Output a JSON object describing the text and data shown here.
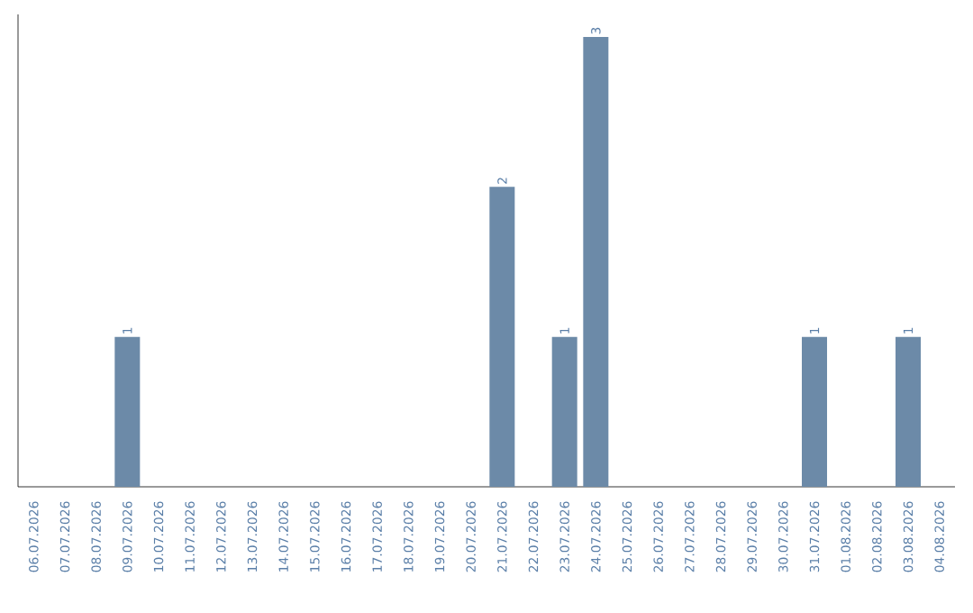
{
  "chart_data": {
    "type": "bar",
    "categories": [
      "06.07.2026",
      "07.07.2026",
      "08.07.2026",
      "09.07.2026",
      "10.07.2026",
      "11.07.2026",
      "12.07.2026",
      "13.07.2026",
      "14.07.2026",
      "15.07.2026",
      "16.07.2026",
      "17.07.2026",
      "18.07.2026",
      "19.07.2026",
      "20.07.2026",
      "21.07.2026",
      "22.07.2026",
      "23.07.2026",
      "24.07.2026",
      "25.07.2026",
      "26.07.2026",
      "27.07.2026",
      "28.07.2026",
      "29.07.2026",
      "30.07.2026",
      "31.07.2026",
      "01.08.2026",
      "02.08.2026",
      "03.08.2026",
      "04.08.2026"
    ],
    "values": [
      0,
      0,
      0,
      1,
      0,
      0,
      0,
      0,
      0,
      0,
      0,
      0,
      0,
      0,
      0,
      2,
      0,
      1,
      3,
      0,
      0,
      0,
      0,
      0,
      0,
      1,
      0,
      0,
      1,
      0
    ],
    "value_labels": [
      null,
      null,
      null,
      "1",
      null,
      null,
      null,
      null,
      null,
      null,
      null,
      null,
      null,
      null,
      null,
      "2",
      null,
      "1",
      "3",
      null,
      null,
      null,
      null,
      null,
      null,
      "1",
      null,
      null,
      "1",
      null
    ],
    "color": "#6c8aa8",
    "tick_labels": "x",
    "grid": false
  }
}
